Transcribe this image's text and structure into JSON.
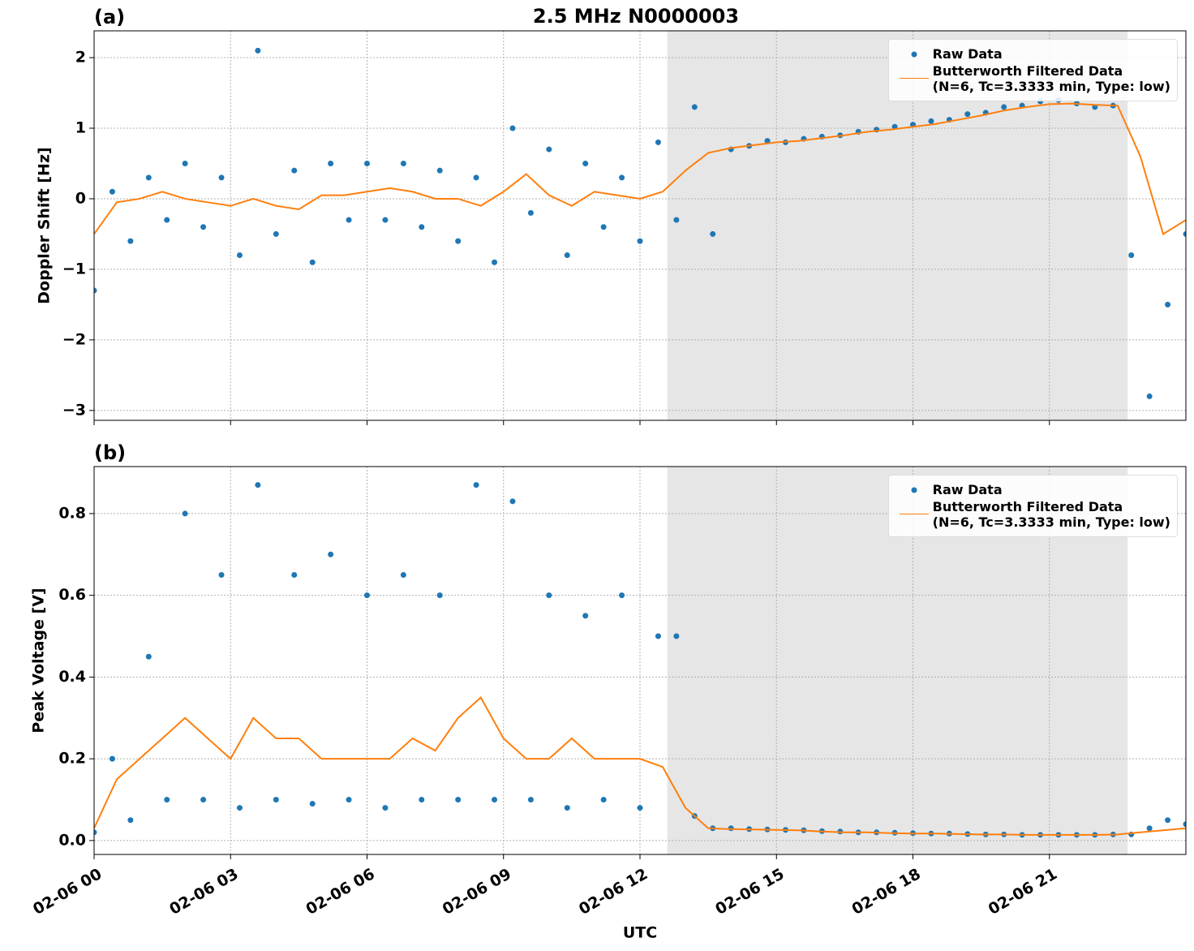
{
  "title": "2.5 MHz N0000003",
  "chart_data": [
    {
      "type": "line",
      "label": "(a)",
      "ylabel": "Doppler Shift [Hz]",
      "xlim": [
        0,
        24
      ],
      "xticks": [
        0,
        3,
        6,
        9,
        12,
        15,
        18,
        21
      ],
      "ylim": [
        -3.14,
        2.38
      ],
      "yticks": [
        {
          "value": -3,
          "label": "−3"
        },
        {
          "value": -2,
          "label": "−2"
        },
        {
          "value": -1,
          "label": "−1"
        },
        0,
        1,
        2
      ],
      "grid": true,
      "shade": [
        12.6,
        22.72
      ],
      "legend": "upper right",
      "series": [
        {
          "name": "Raw Data",
          "color": "#1f77b4",
          "style": "markers",
          "x": [
            0,
            0.4,
            0.8,
            1.2,
            1.6,
            2,
            2.4,
            2.8,
            3.2,
            3.6,
            4,
            4.4,
            4.8,
            5.2,
            5.6,
            6,
            6.4,
            6.8,
            7.2,
            7.6,
            8,
            8.4,
            8.8,
            9.2,
            9.6,
            10,
            10.4,
            10.8,
            11.2,
            11.6,
            12,
            12.4,
            12.8,
            13.2,
            13.6,
            14,
            14.4,
            14.8,
            15.2,
            15.6,
            16,
            16.4,
            16.8,
            17.2,
            17.6,
            18,
            18.4,
            18.8,
            19.2,
            19.6,
            20,
            20.4,
            20.8,
            21.2,
            21.6,
            22,
            22.4,
            22.8,
            23.2,
            23.6,
            24
          ],
          "values": [
            -1.3,
            0.1,
            -0.6,
            0.3,
            -0.3,
            0.5,
            -0.4,
            0.3,
            -0.8,
            2.1,
            -0.5,
            0.4,
            -0.9,
            0.5,
            -0.3,
            0.5,
            -0.3,
            0.5,
            -0.4,
            0.4,
            -0.6,
            0.3,
            -0.9,
            1.0,
            -0.2,
            0.7,
            -0.8,
            0.5,
            -0.4,
            0.3,
            -0.6,
            0.8,
            -0.3,
            1.3,
            -0.5,
            0.7,
            0.75,
            0.82,
            0.8,
            0.85,
            0.88,
            0.9,
            0.95,
            0.98,
            1.02,
            1.05,
            1.1,
            1.12,
            1.2,
            1.22,
            1.3,
            1.32,
            1.38,
            1.4,
            1.35,
            1.3,
            1.32,
            -0.8,
            -2.8,
            -1.5,
            -0.5
          ]
        },
        {
          "name": "Butterworth Filtered Data\n(N=6, Tc=3.3333 min, Type: low)",
          "color": "#ff7f0e",
          "style": "line",
          "x": [
            0,
            0.5,
            1,
            1.5,
            2,
            2.5,
            3,
            3.5,
            4,
            4.5,
            5,
            5.5,
            6,
            6.5,
            7,
            7.5,
            8,
            8.5,
            9,
            9.5,
            10,
            10.5,
            11,
            11.5,
            12,
            12.5,
            13,
            13.5,
            14,
            14.5,
            15,
            15.5,
            16,
            16.5,
            17,
            17.5,
            18,
            18.5,
            19,
            19.5,
            20,
            20.5,
            21,
            21.5,
            22,
            22.5,
            23,
            23.5,
            24
          ],
          "values": [
            -0.5,
            -0.05,
            0.0,
            0.1,
            0.0,
            -0.05,
            -0.1,
            0.0,
            -0.1,
            -0.15,
            0.05,
            0.05,
            0.1,
            0.15,
            0.1,
            0.0,
            0.0,
            -0.1,
            0.1,
            0.35,
            0.05,
            -0.1,
            0.1,
            0.05,
            0.0,
            0.1,
            0.4,
            0.65,
            0.72,
            0.76,
            0.8,
            0.82,
            0.86,
            0.9,
            0.95,
            0.98,
            1.02,
            1.06,
            1.12,
            1.18,
            1.25,
            1.3,
            1.34,
            1.35,
            1.33,
            1.32,
            0.6,
            -0.5,
            -0.3
          ]
        }
      ]
    },
    {
      "type": "line",
      "label": "(b)",
      "ylabel": "Peak Voltage [V]",
      "xlabel": "UTC",
      "xlim": [
        0,
        24
      ],
      "xticks": [
        {
          "value": 0,
          "label": "02-06 00"
        },
        {
          "value": 3,
          "label": "02-06 03"
        },
        {
          "value": 6,
          "label": "02-06 06"
        },
        {
          "value": 9,
          "label": "02-06 09"
        },
        {
          "value": 12,
          "label": "02-06 12"
        },
        {
          "value": 15,
          "label": "02-06 15"
        },
        {
          "value": 18,
          "label": "02-06 18"
        },
        {
          "value": 21,
          "label": "02-06 21"
        }
      ],
      "ylim": [
        -0.034,
        0.915
      ],
      "yticks": [
        {
          "value": 0,
          "label": "0.0"
        },
        0.2,
        0.4,
        0.6,
        0.8
      ],
      "grid": true,
      "shade": [
        12.6,
        22.72
      ],
      "legend": "upper right",
      "series": [
        {
          "name": "Raw Data",
          "color": "#1f77b4",
          "style": "markers",
          "x": [
            0,
            0.4,
            0.8,
            1.2,
            1.6,
            2,
            2.4,
            2.8,
            3.2,
            3.6,
            4,
            4.4,
            4.8,
            5.2,
            5.6,
            6,
            6.4,
            6.8,
            7.2,
            7.6,
            8,
            8.4,
            8.8,
            9.2,
            9.6,
            10,
            10.4,
            10.8,
            11.2,
            11.6,
            12,
            12.4,
            12.8,
            13.2,
            13.6,
            14,
            14.4,
            14.8,
            15.2,
            15.6,
            16,
            16.4,
            16.8,
            17.2,
            17.6,
            18,
            18.4,
            18.8,
            19.2,
            19.6,
            20,
            20.4,
            20.8,
            21.2,
            21.6,
            22,
            22.4,
            22.8,
            23.2,
            23.6,
            24
          ],
          "values": [
            0.02,
            0.2,
            0.05,
            0.45,
            0.1,
            0.8,
            0.1,
            0.65,
            0.08,
            0.87,
            0.1,
            0.65,
            0.09,
            0.7,
            0.1,
            0.6,
            0.08,
            0.65,
            0.1,
            0.6,
            0.1,
            0.87,
            0.1,
            0.83,
            0.1,
            0.6,
            0.08,
            0.55,
            0.1,
            0.6,
            0.08,
            0.5,
            0.5,
            0.06,
            0.03,
            0.03,
            0.028,
            0.027,
            0.026,
            0.025,
            0.023,
            0.022,
            0.02,
            0.02,
            0.019,
            0.018,
            0.017,
            0.017,
            0.016,
            0.015,
            0.015,
            0.014,
            0.014,
            0.014,
            0.014,
            0.014,
            0.015,
            0.015,
            0.03,
            0.05,
            0.04
          ]
        },
        {
          "name": "Butterworth Filtered Data\n(N=6, Tc=3.3333 min, Type: low)",
          "color": "#ff7f0e",
          "style": "line",
          "x": [
            0,
            0.5,
            1,
            1.5,
            2,
            2.5,
            3,
            3.5,
            4,
            4.5,
            5,
            5.5,
            6,
            6.5,
            7,
            7.5,
            8,
            8.5,
            9,
            9.5,
            10,
            10.5,
            11,
            11.5,
            12,
            12.5,
            13,
            13.5,
            14,
            14.5,
            15,
            15.5,
            16,
            16.5,
            17,
            17.5,
            18,
            18.5,
            19,
            19.5,
            20,
            20.5,
            21,
            21.5,
            22,
            22.5,
            23,
            23.5,
            24
          ],
          "values": [
            0.03,
            0.15,
            0.2,
            0.25,
            0.3,
            0.25,
            0.2,
            0.3,
            0.25,
            0.25,
            0.2,
            0.2,
            0.2,
            0.2,
            0.25,
            0.22,
            0.3,
            0.35,
            0.25,
            0.2,
            0.2,
            0.25,
            0.2,
            0.2,
            0.2,
            0.18,
            0.08,
            0.03,
            0.028,
            0.027,
            0.026,
            0.025,
            0.022,
            0.02,
            0.02,
            0.018,
            0.017,
            0.017,
            0.016,
            0.015,
            0.015,
            0.014,
            0.014,
            0.014,
            0.014,
            0.015,
            0.02,
            0.025,
            0.03
          ]
        }
      ]
    }
  ]
}
